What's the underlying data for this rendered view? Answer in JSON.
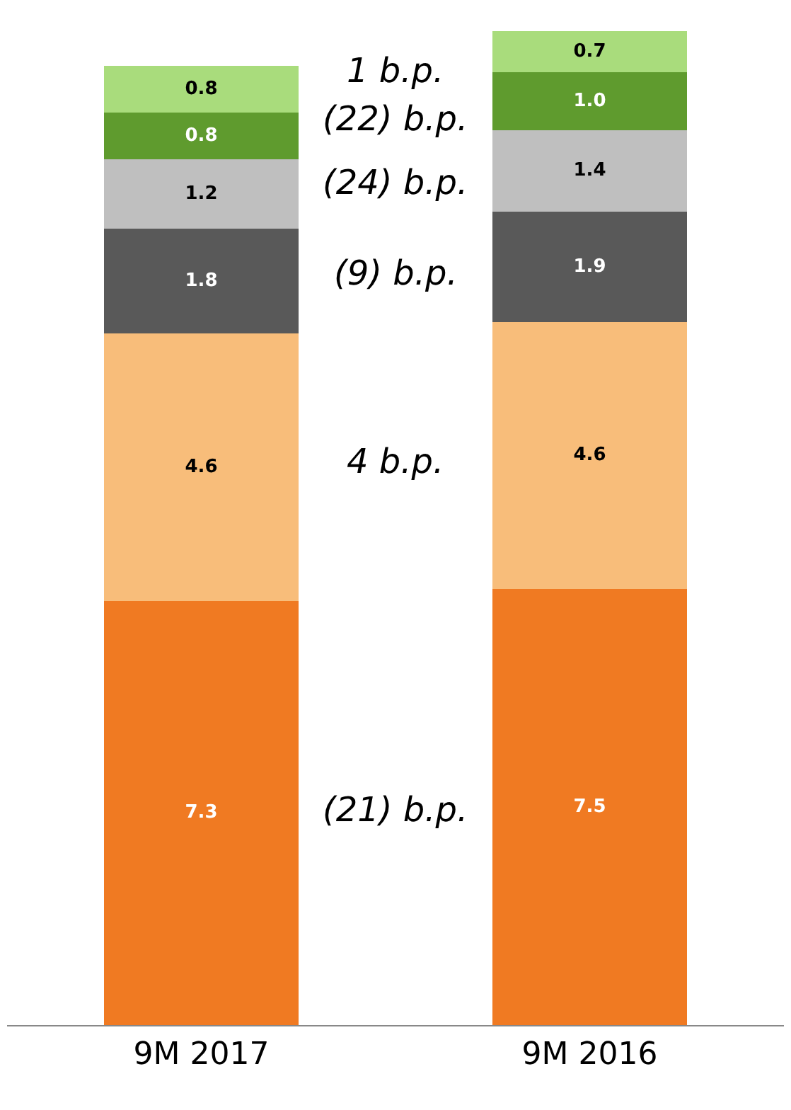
{
  "chart_data": {
    "type": "bar",
    "stacked": true,
    "categories": [
      "9M 2017",
      "9M 2016"
    ],
    "series": [
      {
        "color": "#f07a22",
        "values": [
          7.3,
          7.5
        ],
        "value_labels": [
          "7.3",
          "7.5"
        ]
      },
      {
        "color": "#f8bd7a",
        "values": [
          4.6,
          4.6
        ],
        "value_labels": [
          "4.6",
          "4.6"
        ]
      },
      {
        "color": "#595959",
        "values": [
          1.8,
          1.9
        ],
        "value_labels": [
          "1.8",
          "1.9"
        ]
      },
      {
        "color": "#bfbfbf",
        "values": [
          1.2,
          1.4
        ],
        "value_labels": [
          "1.2",
          "1.4"
        ]
      },
      {
        "color": "#5f9b2e",
        "values": [
          0.8,
          1.0
        ],
        "value_labels": [
          "0.8",
          "1.0"
        ]
      },
      {
        "color": "#a9dc7c",
        "values": [
          0.8,
          0.7
        ],
        "value_labels": [
          "0.8",
          "0.7"
        ]
      }
    ],
    "annotations": [
      "(21) b.p.",
      "4 b.p.",
      "(9) b.p.",
      "(24) b.p.",
      "(22) b.p.",
      "1 b.p."
    ]
  }
}
